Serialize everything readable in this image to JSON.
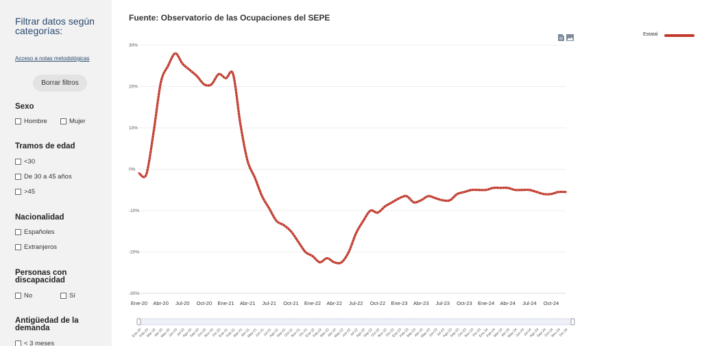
{
  "sidebar": {
    "title": "Filtrar datos según categorías:",
    "notes_link": "Acceso a notas metodológicas",
    "clear_button": "Borrar filtros",
    "groups": {
      "sexo": {
        "title": "Sexo",
        "options": [
          "Hombre",
          "Mujer"
        ]
      },
      "edad": {
        "title": "Tramos de edad",
        "options": [
          "<30",
          "De 30 a 45 años",
          ">45"
        ]
      },
      "nacionalidad": {
        "title": "Nacionalidad",
        "options": [
          "Españoles",
          "Extranjeros"
        ]
      },
      "discapacidad": {
        "title": "Personas con discapacidad",
        "options": [
          "No",
          "Sí"
        ]
      },
      "antiguedad": {
        "title": "Antigüedad de la demanda",
        "options": [
          "< 3 meses"
        ]
      }
    }
  },
  "header": {
    "title": "Fuente: Observatorio de las Ocupaciones del SEPE"
  },
  "toolbar": {
    "icons": [
      "document-icon",
      "image-icon"
    ]
  },
  "legend": {
    "label": "Estatal",
    "color": "#c0392b"
  },
  "chart_data": {
    "type": "line",
    "x": [
      "Ene-20",
      "Feb-20",
      "Mar-20",
      "Abr-20",
      "May-20",
      "Jun-20",
      "Jul-20",
      "Ago-20",
      "Sep-20",
      "Oct-20",
      "Nov-20",
      "Dic-20",
      "Ene-21",
      "Feb-21",
      "Mar-21",
      "Abr-21",
      "May-21",
      "Jun-21",
      "Jul-21",
      "Ago-21",
      "Sep-21",
      "Oct-21",
      "Nov-21",
      "Dic-21",
      "Ene-22",
      "Feb-22",
      "Mar-22",
      "Abr-22",
      "May-22",
      "Jun-22",
      "Jul-22",
      "Ago-22",
      "Sep-22",
      "Oct-22",
      "Nov-22",
      "Dic-22",
      "Ene-23",
      "Feb-23",
      "Mar-23",
      "Abr-23",
      "May-23",
      "Jun-23",
      "Jul-23",
      "Ago-23",
      "Sep-23",
      "Oct-23",
      "Nov-23",
      "Dic-23",
      "Ene-24",
      "Feb-24",
      "Mar-24",
      "Abr-24",
      "May-24",
      "Jun-24",
      "Jul-24",
      "Ago-24",
      "Sep-24",
      "Oct-24",
      "Nov-24",
      "Dic-24"
    ],
    "x_tick_labels": [
      "Ene-20",
      "Abr-20",
      "Jul-20",
      "Oct-20",
      "Ene-21",
      "Abr-21",
      "Jul-21",
      "Oct-21",
      "Ene-22",
      "Abr-22",
      "Jul-22",
      "Oct-22",
      "Ene-23",
      "Abr-23",
      "Jul-23",
      "Oct-23",
      "Ene-24",
      "Abr-24",
      "Jul-24",
      "Oct-24"
    ],
    "series": [
      {
        "name": "Estatal",
        "color": "#c0392b",
        "values": [
          -1.0,
          -1.2,
          9.0,
          21.0,
          25.0,
          28.0,
          25.5,
          24.0,
          22.5,
          20.5,
          20.5,
          23.0,
          22.0,
          23.0,
          11.0,
          2.0,
          -2.0,
          -6.5,
          -9.5,
          -12.5,
          -13.5,
          -15.0,
          -17.5,
          -20.0,
          -21.0,
          -22.5,
          -21.5,
          -22.5,
          -22.5,
          -20.0,
          -15.5,
          -12.5,
          -10.0,
          -10.5,
          -9.0,
          -8.0,
          -7.0,
          -6.5,
          -8.0,
          -7.5,
          -6.5,
          -7.0,
          -7.5,
          -7.5,
          -6.0,
          -5.5,
          -5.0,
          -5.0,
          -5.0,
          -4.5,
          -4.5,
          -4.5,
          -5.0,
          -5.0,
          -5.0,
          -5.5,
          -6.0,
          -6.0,
          -5.5,
          -5.5
        ]
      }
    ],
    "y_ticks": [
      "-30%",
      "-20%",
      "-10%",
      "0%",
      "10%",
      "20%",
      "30%"
    ],
    "ylim": [
      -30,
      30
    ],
    "grid": true,
    "legend_position": "top-right"
  }
}
